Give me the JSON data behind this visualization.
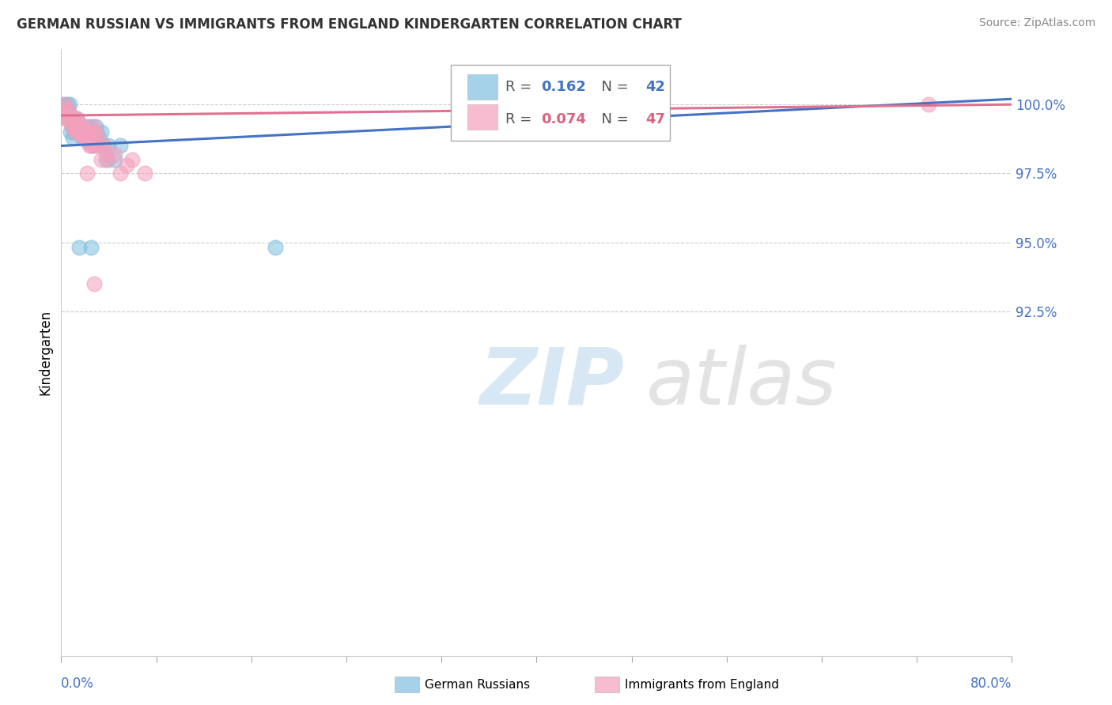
{
  "title": "GERMAN RUSSIAN VS IMMIGRANTS FROM ENGLAND KINDERGARTEN CORRELATION CHART",
  "source": "Source: ZipAtlas.com",
  "ylabel": "Kindergarten",
  "y_ticks": [
    92.5,
    95.0,
    97.5,
    100.0
  ],
  "y_tick_labels": [
    "92.5%",
    "95.0%",
    "97.5%",
    "100.0%"
  ],
  "xlim": [
    0.0,
    80.0
  ],
  "ylim": [
    80.0,
    102.0
  ],
  "blue_color": "#7fbfdf",
  "pink_color": "#f4a0bc",
  "blue_line_color": "#4472c4",
  "pink_line_color": "#e07090",
  "blue_r": 0.162,
  "blue_n": 42,
  "pink_r": 0.074,
  "pink_n": 47,
  "blue_line_y0": 98.5,
  "blue_line_y1": 100.2,
  "pink_line_y0": 99.6,
  "pink_line_y1": 100.0,
  "blue_scatter_x": [
    0.2,
    0.3,
    0.4,
    0.5,
    0.5,
    0.6,
    0.7,
    0.8,
    0.8,
    0.9,
    1.0,
    1.0,
    1.1,
    1.2,
    1.3,
    1.4,
    1.5,
    1.6,
    1.7,
    1.8,
    1.9,
    2.0,
    2.1,
    2.2,
    2.3,
    2.4,
    2.5,
    2.6,
    2.7,
    2.8,
    2.9,
    3.0,
    3.2,
    3.4,
    3.6,
    3.8,
    4.0,
    4.5,
    5.0,
    1.5,
    2.5,
    18.0
  ],
  "blue_scatter_y": [
    100.0,
    99.8,
    99.7,
    100.0,
    99.5,
    99.8,
    100.0,
    99.6,
    99.0,
    99.2,
    99.5,
    98.8,
    99.0,
    99.3,
    99.5,
    99.4,
    99.2,
    99.0,
    99.1,
    98.8,
    99.0,
    98.9,
    99.0,
    99.2,
    98.8,
    99.0,
    99.2,
    99.0,
    98.5,
    98.8,
    99.2,
    99.0,
    98.8,
    99.0,
    98.5,
    98.0,
    98.5,
    98.0,
    98.5,
    94.8,
    94.8,
    94.8
  ],
  "pink_scatter_x": [
    0.2,
    0.3,
    0.4,
    0.5,
    0.6,
    0.7,
    0.8,
    0.9,
    1.0,
    1.1,
    1.2,
    1.3,
    1.4,
    1.5,
    1.6,
    1.7,
    1.8,
    1.9,
    2.0,
    2.1,
    2.2,
    2.3,
    2.4,
    2.5,
    2.6,
    2.7,
    2.8,
    2.9,
    3.0,
    3.2,
    3.4,
    3.6,
    3.8,
    4.0,
    4.5,
    5.0,
    5.5,
    6.0,
    7.0,
    0.5,
    1.0,
    1.5,
    2.0,
    2.5,
    73.0,
    2.2,
    2.8
  ],
  "pink_scatter_y": [
    99.8,
    100.0,
    99.5,
    99.7,
    99.8,
    99.5,
    99.6,
    99.2,
    99.5,
    99.4,
    99.0,
    99.5,
    99.2,
    99.0,
    99.3,
    99.1,
    99.2,
    98.8,
    99.0,
    98.9,
    98.7,
    99.0,
    98.5,
    99.0,
    98.8,
    99.2,
    98.5,
    99.0,
    98.8,
    98.5,
    98.0,
    98.5,
    98.2,
    98.0,
    98.2,
    97.5,
    97.8,
    98.0,
    97.5,
    99.5,
    99.2,
    99.0,
    98.8,
    98.5,
    100.0,
    97.5,
    93.5
  ]
}
